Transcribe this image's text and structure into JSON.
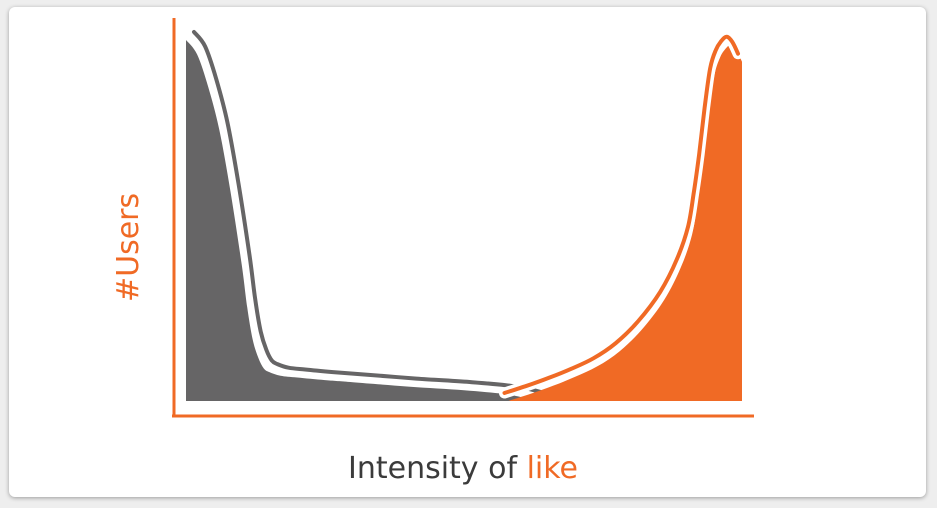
{
  "chart_data": {
    "type": "area",
    "title": "",
    "xlabel": {
      "text": "Intensity of ",
      "highlight": "like"
    },
    "ylabel": {
      "prefix": "#",
      "text": "Users"
    },
    "xlim": [
      0,
      100
    ],
    "ylim": [
      0,
      100
    ],
    "grid": false,
    "legend": "none",
    "series": [
      {
        "color": "#666566",
        "x": [
          0,
          2,
          4,
          6,
          8,
          10,
          11,
          12,
          13,
          14,
          15,
          17,
          20,
          25,
          30,
          40,
          50,
          57,
          60,
          63
        ],
        "y": [
          100,
          96,
          87,
          75,
          58,
          38,
          26,
          17,
          12,
          9,
          8,
          7,
          6.5,
          5.8,
          5.2,
          4.0,
          3.0,
          2.0,
          1.2,
          0
        ]
      },
      {
        "color": "#f06a25",
        "x": [
          58,
          62,
          66,
          70,
          74,
          78,
          82,
          86,
          89,
          91,
          92,
          93,
          94,
          95,
          96,
          97,
          98,
          99,
          100
        ],
        "y": [
          0,
          2.0,
          4.2,
          6.7,
          9.6,
          13.8,
          19.8,
          28.0,
          37.0,
          46.0,
          55.0,
          66.0,
          79.0,
          90.0,
          95.0,
          97.5,
          98.7,
          97.2,
          94.0
        ]
      }
    ],
    "colors": {
      "axis": "#f06a25",
      "text": "#3b3b3b",
      "accent": "#f06a25"
    }
  }
}
